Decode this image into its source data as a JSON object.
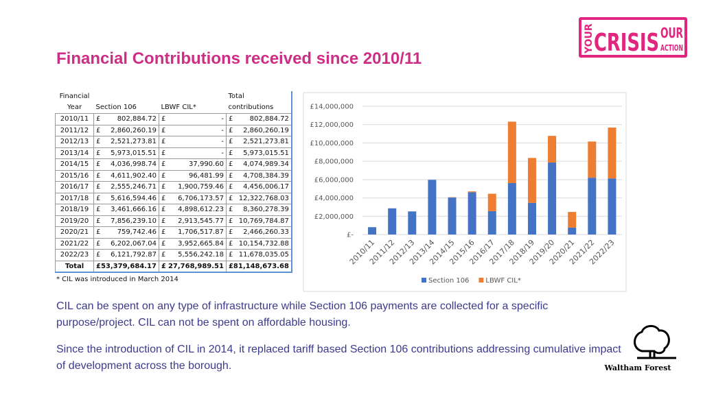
{
  "title": "Financial Contributions received since 2010/11",
  "logo": {
    "side": "YOUR",
    "main": "CRISIS",
    "top": "OUR",
    "bottom": "ACTION"
  },
  "table": {
    "currency": "£",
    "headers": [
      "Financial Year",
      "Section 106",
      "LBWF CIL*",
      "Total contributions"
    ],
    "rows": [
      [
        "2010/11",
        "802,884.72",
        "-",
        "802,884.72"
      ],
      [
        "2011/12",
        "2,860,260.19",
        "-",
        "2,860,260.19"
      ],
      [
        "2012/13",
        "2,521,273.81",
        "-",
        "2,521,273.81"
      ],
      [
        "2013/14",
        "5,973,015.51",
        "-",
        "5,973,015.51"
      ],
      [
        "2014/15",
        "4,036,998.74",
        "37,990.60",
        "4,074,989.34"
      ],
      [
        "2015/16",
        "4,611,902.40",
        "96,481.99",
        "4,708,384.39"
      ],
      [
        "2016/17",
        "2,555,246.71",
        "1,900,759.46",
        "4,456,006.17"
      ],
      [
        "2017/18",
        "5,616,594.46",
        "6,706,173.57",
        "12,322,768.03"
      ],
      [
        "2018/19",
        "3,461,666.16",
        "4,898,612.23",
        "8,360,278.39"
      ],
      [
        "2019/20",
        "7,856,239.10",
        "2,913,545.77",
        "10,769,784.87"
      ],
      [
        "2020/21",
        "759,742.46",
        "1,706,517.87",
        "2,466,260.33"
      ],
      [
        "2021/22",
        "6,202,067.04",
        "3,952,665.84",
        "10,154,732.88"
      ],
      [
        "2022/23",
        "6,121,792.87",
        "5,556,242.18",
        "11,678,035.05"
      ],
      [
        "Total",
        "53,379,684.17",
        "27,768,989.51",
        "81,148,673.68"
      ]
    ],
    "footnote": "* CIL was introduced in March 2014"
  },
  "chart_data": {
    "type": "stacked_bar",
    "categories": [
      "2010/11",
      "2011/12",
      "2012/13",
      "2013/14",
      "2014/15",
      "2015/16",
      "2016/17",
      "2017/18",
      "2018/19",
      "2019/20",
      "2020/21",
      "2021/22",
      "2022/23"
    ],
    "series": [
      {
        "name": "Section 106",
        "color": "#4472c4",
        "values": [
          802884.72,
          2860260.19,
          2521273.81,
          5973015.51,
          4036998.74,
          4611902.4,
          2555246.71,
          5616594.46,
          3461666.16,
          7856239.1,
          759742.46,
          6202067.04,
          6121792.87
        ]
      },
      {
        "name": "LBWF CIL*",
        "color": "#ed7d31",
        "values": [
          0,
          0,
          0,
          0,
          37990.6,
          96481.99,
          1900759.46,
          6706173.57,
          4898612.23,
          2913545.77,
          1706517.87,
          3952665.84,
          5556242.18
        ]
      }
    ],
    "ylim": [
      0,
      14000000
    ],
    "yticks": [
      {
        "value": 0,
        "label": "£-"
      },
      {
        "value": 2000000,
        "label": "£2,000,000"
      },
      {
        "value": 4000000,
        "label": "£4,000,000"
      },
      {
        "value": 6000000,
        "label": "£6,000,000"
      },
      {
        "value": 8000000,
        "label": "£8,000,000"
      },
      {
        "value": 10000000,
        "label": "£10,000,000"
      },
      {
        "value": 12000000,
        "label": "£12,000,000"
      },
      {
        "value": 14000000,
        "label": "£14,000,000"
      }
    ],
    "grid": true,
    "legend": "bottom"
  },
  "paragraphs": [
    "CIL can be spent on any type of infrastructure while Section 106 payments are collected for a specific purpose/project. CIL can not be spent on affordable housing.",
    "Since the introduction of CIL in 2014, it replaced tariff based Section 106 contributions addressing cumulative impact of development across the borough."
  ],
  "footer_logo": "Waltham Forest"
}
